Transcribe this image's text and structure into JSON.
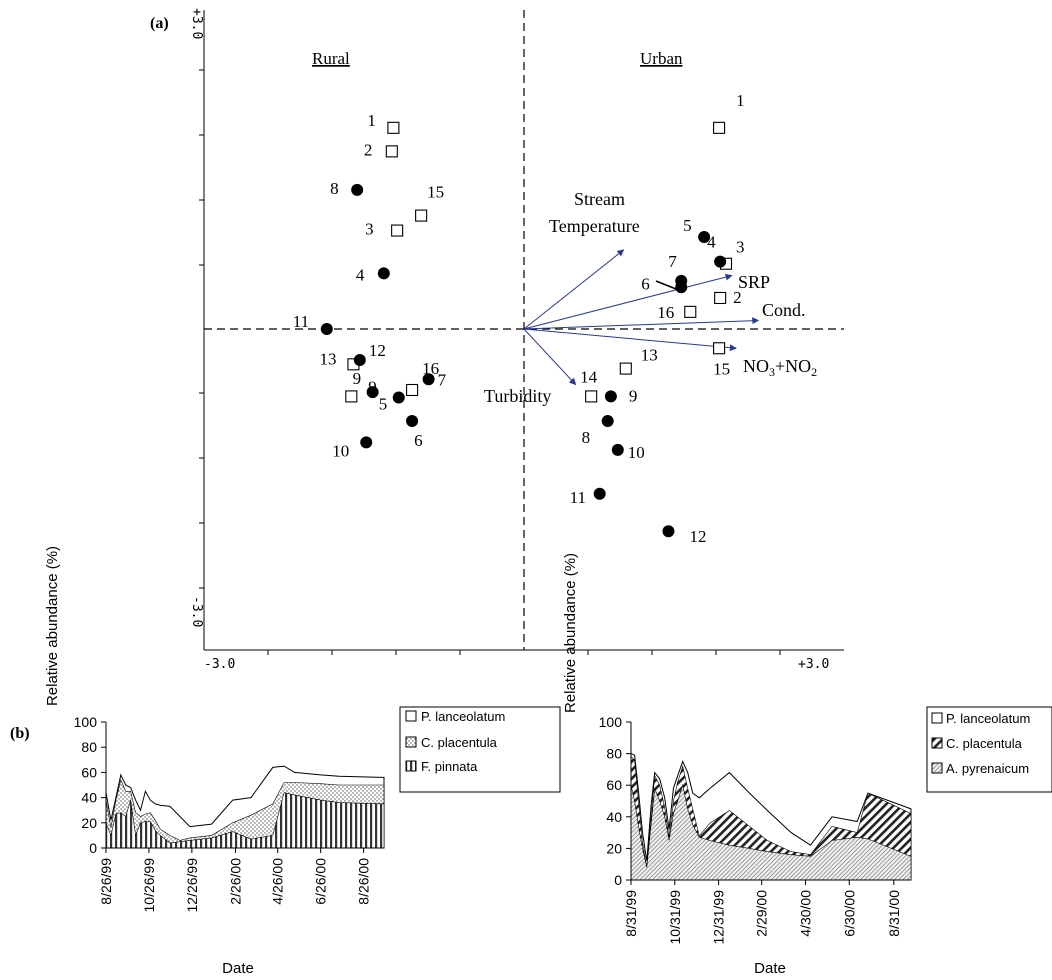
{
  "chart_data": [
    {
      "type": "scatter",
      "panel_label": "(a)",
      "xlim": [
        -3.0,
        3.0
      ],
      "ylim": [
        -3.0,
        3.0
      ],
      "x_tick_labels": [
        "-3.0",
        "+3.0"
      ],
      "y_tick_labels": [
        "+3.0",
        "-3.0"
      ],
      "groups": [
        {
          "name": "Rural",
          "open_squares": [
            {
              "label": "1",
              "x": -2.45,
              "y": 1.88
            },
            {
              "label": "2",
              "x": -2.48,
              "y": 1.66
            },
            {
              "label": "3",
              "x": -2.38,
              "y": 0.92
            },
            {
              "label": "15",
              "x": -1.93,
              "y": 1.06
            },
            {
              "label": "9",
              "x": -3.24,
              "y": -0.63
            },
            {
              "label": "13",
              "x": -3.2,
              "y": -0.33
            },
            {
              "label": "16",
              "x": -2.1,
              "y": -0.57
            }
          ],
          "filled_circles": [
            {
              "label": "8",
              "x": -3.13,
              "y": 1.3
            },
            {
              "label": "4",
              "x": -2.63,
              "y": 0.52
            },
            {
              "label": "11",
              "x": -3.7,
              "y": 0.0
            },
            {
              "label": "12",
              "x": -3.08,
              "y": -0.29
            },
            {
              "label": "9",
              "x": -2.84,
              "y": -0.59
            },
            {
              "label": "5",
              "x": -2.35,
              "y": -0.64
            },
            {
              "label": "7",
              "x": -1.79,
              "y": -0.47
            },
            {
              "label": "6",
              "x": -2.1,
              "y": -0.86
            },
            {
              "label": "10",
              "x": -2.96,
              "y": -1.06
            }
          ]
        },
        {
          "name": "Urban",
          "open_squares": [
            {
              "label": "1",
              "x": 3.66,
              "y": 1.88
            },
            {
              "label": "3",
              "x": 3.79,
              "y": 0.61
            },
            {
              "label": "2",
              "x": 3.68,
              "y": 0.29
            },
            {
              "label": "16",
              "x": 3.12,
              "y": 0.16
            },
            {
              "label": "15",
              "x": 3.66,
              "y": -0.18
            },
            {
              "label": "13",
              "x": 1.91,
              "y": -0.37
            },
            {
              "label": "14",
              "x": 1.26,
              "y": -0.63
            }
          ],
          "filled_circles": [
            {
              "label": "5",
              "x": 3.38,
              "y": 0.86
            },
            {
              "label": "4",
              "x": 3.68,
              "y": 0.63
            },
            {
              "label": "7",
              "x": 2.95,
              "y": 0.45
            },
            {
              "label": "6",
              "x": 2.95,
              "y": 0.39
            },
            {
              "label": "9",
              "x": 1.63,
              "y": -0.63
            },
            {
              "label": "8",
              "x": 1.57,
              "y": -0.86
            },
            {
              "label": "10",
              "x": 1.76,
              "y": -1.13
            },
            {
              "label": "11",
              "x": 1.42,
              "y": -1.54
            },
            {
              "label": "12",
              "x": 2.71,
              "y": -1.89
            }
          ]
        }
      ],
      "vectors": [
        {
          "label": "Stream Temperature",
          "x": 1.87,
          "y": 0.74
        },
        {
          "label": "SRP",
          "x": 3.9,
          "y": 0.5
        },
        {
          "label": "Cond.",
          "x": 4.4,
          "y": 0.08
        },
        {
          "label": "NO3+NO2",
          "x": 3.98,
          "y": -0.18
        },
        {
          "label": "Turbidity",
          "x": 0.97,
          "y": -0.52
        }
      ]
    },
    {
      "type": "area",
      "panel_label": "(b)",
      "xlabel": "Date",
      "ylabel": "Relative abundance (%)",
      "ylim": [
        0,
        100
      ],
      "yticks": [
        0,
        20,
        40,
        60,
        80,
        100
      ],
      "x_tick_labels": [
        "8/26/99",
        "10/26/99",
        "12/26/99",
        "2/26/00",
        "4/26/00",
        "6/26/00",
        "8/26/00"
      ],
      "x_tick_positions": [
        0,
        61,
        122,
        184,
        244,
        305,
        366
      ],
      "x": [
        0,
        7,
        14,
        21,
        28,
        35,
        42,
        49,
        56,
        63,
        70,
        77,
        91,
        105,
        119,
        150,
        180,
        206,
        237,
        253,
        268,
        305,
        331,
        395
      ],
      "series": [
        {
          "name": "P. lanceolatum",
          "values": [
            44,
            22,
            40,
            58,
            50,
            48,
            38,
            30,
            45,
            38,
            35,
            34,
            33,
            25,
            17,
            19,
            38,
            40,
            64,
            65,
            60,
            58,
            57,
            56
          ]
        },
        {
          "name": "C. placentula",
          "values": [
            38,
            16,
            38,
            54,
            45,
            45,
            28,
            25,
            27,
            28,
            22,
            15,
            10,
            6,
            8,
            10,
            20,
            26,
            35,
            52,
            52,
            51,
            50,
            50
          ]
        },
        {
          "name": "F. pinnata",
          "values": [
            20,
            10,
            27,
            28,
            25,
            38,
            10,
            20,
            21,
            21,
            14,
            10,
            4,
            5,
            6,
            8,
            13,
            7,
            10,
            44,
            42,
            38,
            36,
            35
          ]
        }
      ],
      "legend": "right"
    },
    {
      "type": "area",
      "xlabel": "Date",
      "ylabel": "Relative abundance (%)",
      "ylim": [
        0,
        100
      ],
      "yticks": [
        0,
        20,
        40,
        60,
        80,
        100
      ],
      "x_tick_labels": [
        "8/31/99",
        "10/31/99",
        "12/31/99",
        "2/29/00",
        "4/30/00",
        "6/30/00",
        "8/31/00"
      ],
      "x_tick_positions": [
        0,
        61,
        122,
        182,
        243,
        304,
        366
      ],
      "x": [
        0,
        5,
        10,
        16,
        22,
        28,
        33,
        40,
        47,
        53,
        59,
        65,
        72,
        79,
        86,
        95,
        110,
        137,
        165,
        190,
        223,
        250,
        280,
        315,
        330,
        390
      ],
      "series": [
        {
          "name": "P. lanceolatum",
          "values": [
            80,
            79,
            58,
            30,
            12,
            47,
            68,
            64,
            52,
            32,
            58,
            66,
            75,
            68,
            55,
            52,
            58,
            68,
            55,
            44,
            30,
            22,
            40,
            37,
            55,
            45
          ]
        },
        {
          "name": "C. placentula",
          "values": [
            78,
            76,
            52,
            24,
            8,
            40,
            66,
            60,
            46,
            27,
            50,
            62,
            72,
            58,
            45,
            28,
            36,
            44,
            34,
            25,
            18,
            16,
            34,
            30,
            55,
            42
          ]
        },
        {
          "name": "A. pyrenaicum",
          "values": [
            60,
            50,
            35,
            20,
            8,
            35,
            58,
            50,
            40,
            25,
            42,
            50,
            60,
            45,
            35,
            27,
            25,
            22,
            20,
            18,
            16,
            15,
            25,
            27,
            26,
            15
          ]
        }
      ],
      "legend": "right"
    }
  ]
}
